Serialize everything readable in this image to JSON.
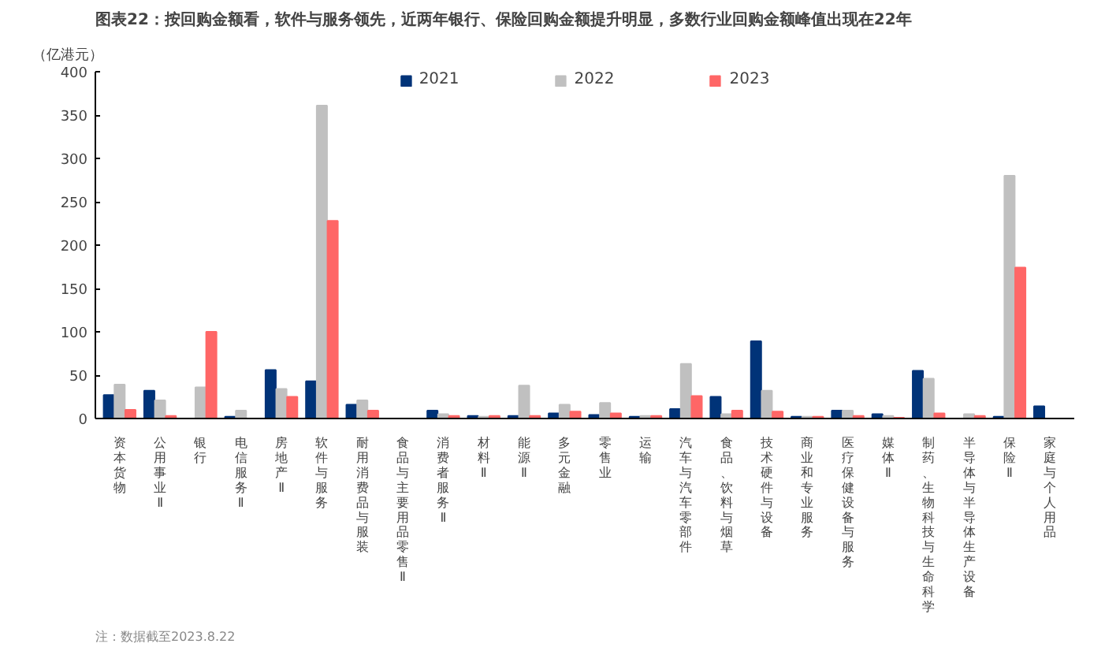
{
  "chart_data": {
    "type": "bar",
    "title": "图表22：按回购金额看，软件与服务领先，近两年银行、保险回购金额提升明显，多数行业回购金额峰值出现在22年",
    "ylabel": "（亿港元）",
    "annotations": [
      "注：数据截至2023.8.22"
    ],
    "categories": [
      "资本货物",
      "公用事业Ⅱ",
      "银行",
      "电信服务Ⅱ",
      "房地产Ⅱ",
      "软件与服务",
      "耐用消费品与服装",
      "食品与主要用品零售Ⅱ",
      "消费者服务Ⅱ",
      "材料Ⅱ",
      "能源Ⅱ",
      "多元金融",
      "零售业",
      "运输",
      "汽车与汽车零部件",
      "食品、饮料与烟草",
      "技术硬件与设备",
      "商业和专业服务",
      "医疗保健设备与服务",
      "媒体Ⅱ",
      "制药、生物科技与生命科学",
      "半导体与半导体生产设备",
      "保险Ⅱ",
      "家庭与个人用品"
    ],
    "series": [
      {
        "name": "2021",
        "color": "#003378",
        "values": [
          27,
          32,
          0,
          2,
          56,
          43,
          16,
          0,
          9,
          3,
          3,
          6,
          4,
          2,
          11,
          25,
          89,
          2,
          9,
          5,
          55,
          0,
          2,
          14
        ]
      },
      {
        "name": "2022",
        "color": "#c0c0c0",
        "values": [
          39,
          21,
          36,
          9,
          34,
          361,
          21,
          0,
          5,
          2,
          38,
          16,
          18,
          3,
          63,
          5,
          32,
          2,
          9,
          3,
          46,
          5,
          280,
          0
        ]
      },
      {
        "name": "2023",
        "color": "#ff6666",
        "values": [
          10,
          3,
          100,
          0,
          25,
          228,
          9,
          0,
          3,
          3,
          3,
          8,
          6,
          3,
          26,
          9,
          8,
          2,
          3,
          1,
          6,
          3,
          174,
          0
        ]
      }
    ],
    "ylim": [
      0,
      400
    ],
    "yticks": [
      0,
      50,
      100,
      150,
      200,
      250,
      300,
      350,
      400
    ],
    "grid": false,
    "legend": "top"
  }
}
